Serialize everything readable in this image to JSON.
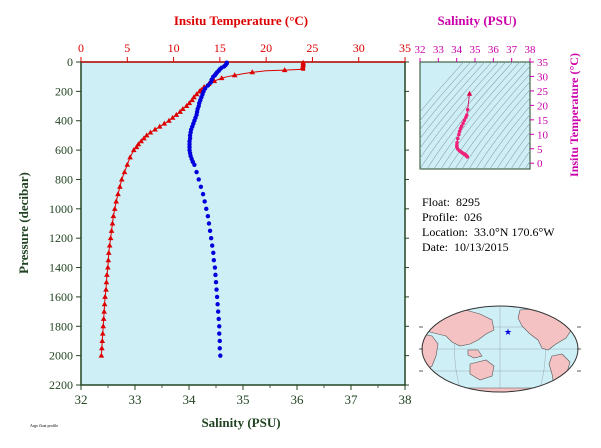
{
  "colors": {
    "temperature": "#dd0000",
    "salinity": "#0000dd",
    "ts_axis": "#cc00aa",
    "axis_dark": "#224422",
    "plot_bg": "#cfeff7",
    "land": "#f4c2c2",
    "ocean": "#cfeff7"
  },
  "footnote": "Argo float profile",
  "info": {
    "float_label": "Float:",
    "float_value": "8295",
    "profile_label": "Profile:",
    "profile_value": "026",
    "location_label": "Location:",
    "location_value": "33.0°N  170.6°W",
    "date_label": "Date:",
    "date_value": "10/13/2015"
  },
  "chart_data": [
    {
      "type": "line",
      "title": "",
      "xlabel_top": "Insitu Temperature (°C)",
      "xlabel_bottom": "Salinity (PSU)",
      "ylabel": "Pressure (decibar)",
      "temp_range": [
        0,
        35
      ],
      "temp_ticks": [
        0,
        5,
        10,
        15,
        20,
        25,
        30,
        35
      ],
      "sal_range": [
        32,
        38
      ],
      "sal_ticks": [
        32,
        33,
        34,
        35,
        36,
        37,
        38
      ],
      "pressure_range": [
        0,
        2200
      ],
      "pressure_ticks": [
        0,
        200,
        400,
        600,
        800,
        1000,
        1200,
        1400,
        1600,
        1800,
        2000,
        2200
      ],
      "grid": false,
      "series": [
        {
          "name": "Insitu Temperature",
          "marker": "triangle",
          "pressure": [
            5,
            10,
            20,
            30,
            40,
            50,
            55,
            60,
            70,
            80,
            90,
            100,
            110,
            120,
            130,
            140,
            150,
            160,
            170,
            180,
            190,
            200,
            220,
            240,
            260,
            280,
            300,
            320,
            340,
            360,
            380,
            400,
            420,
            440,
            460,
            480,
            500,
            520,
            540,
            560,
            580,
            600,
            650,
            700,
            750,
            800,
            850,
            900,
            950,
            1000,
            1050,
            1100,
            1150,
            1200,
            1250,
            1300,
            1350,
            1400,
            1450,
            1500,
            1550,
            1600,
            1650,
            1700,
            1750,
            1800,
            1850,
            1900,
            1950,
            2000
          ],
          "values": [
            24.0,
            24.0,
            24.0,
            24.0,
            23.9,
            23.7,
            22.0,
            20.0,
            18.5,
            17.5,
            16.6,
            15.8,
            15.2,
            14.8,
            14.4,
            14.1,
            13.8,
            13.5,
            13.3,
            13.1,
            13.0,
            12.8,
            12.5,
            12.2,
            12.0,
            11.7,
            11.4,
            11.0,
            10.7,
            10.3,
            9.9,
            9.5,
            9.0,
            8.5,
            8.0,
            7.5,
            7.1,
            6.8,
            6.5,
            6.2,
            6.0,
            5.7,
            5.3,
            5.0,
            4.7,
            4.4,
            4.2,
            4.0,
            3.8,
            3.65,
            3.5,
            3.4,
            3.3,
            3.2,
            3.1,
            3.0,
            2.95,
            2.9,
            2.8,
            2.75,
            2.7,
            2.6,
            2.55,
            2.5,
            2.45,
            2.4,
            2.35,
            2.3,
            2.25,
            2.2
          ]
        },
        {
          "name": "Salinity",
          "marker": "circle",
          "pressure": [
            5,
            10,
            20,
            30,
            40,
            50,
            60,
            70,
            80,
            90,
            100,
            120,
            140,
            160,
            180,
            200,
            220,
            240,
            260,
            280,
            300,
            320,
            340,
            360,
            380,
            400,
            420,
            440,
            460,
            480,
            500,
            520,
            540,
            560,
            580,
            600,
            620,
            640,
            660,
            680,
            700,
            750,
            800,
            850,
            900,
            950,
            1000,
            1050,
            1100,
            1150,
            1200,
            1250,
            1300,
            1350,
            1400,
            1450,
            1500,
            1550,
            1600,
            1650,
            1700,
            1750,
            1800,
            1850,
            1900,
            1950,
            2000
          ],
          "values": [
            34.7,
            34.7,
            34.68,
            34.65,
            34.6,
            34.57,
            34.55,
            34.52,
            34.5,
            34.48,
            34.45,
            34.42,
            34.4,
            34.35,
            34.3,
            34.27,
            34.25,
            34.23,
            34.21,
            34.19,
            34.18,
            34.16,
            34.15,
            34.14,
            34.12,
            34.1,
            34.08,
            34.06,
            34.04,
            34.03,
            34.02,
            34.02,
            34.01,
            34.01,
            34.01,
            34.01,
            34.02,
            34.03,
            34.05,
            34.07,
            34.1,
            34.14,
            34.18,
            34.22,
            34.26,
            34.29,
            34.32,
            34.35,
            34.37,
            34.39,
            34.41,
            34.43,
            34.45,
            34.46,
            34.48,
            34.49,
            34.5,
            34.51,
            34.52,
            34.53,
            34.54,
            34.55,
            34.56,
            34.56,
            34.57,
            34.57,
            34.58
          ]
        }
      ]
    },
    {
      "type": "scatter",
      "title": "",
      "xlabel": "Salinity (PSU)",
      "ylabel": "Insitu Temperature (°C)",
      "xlim": [
        32,
        38
      ],
      "ylim": [
        -2,
        35
      ],
      "x_ticks": [
        32,
        33,
        34,
        35,
        36,
        37,
        38
      ],
      "y_ticks": [
        0,
        5,
        10,
        15,
        20,
        25,
        30,
        35
      ],
      "x": [
        34.7,
        34.6,
        34.55,
        34.5,
        34.42,
        34.35,
        34.27,
        34.21,
        34.16,
        34.12,
        34.06,
        34.02,
        34.01,
        34.01,
        34.05,
        34.14,
        34.22,
        34.29,
        34.35,
        34.41,
        34.46,
        34.5,
        34.53,
        34.56,
        34.58
      ],
      "y": [
        24.0,
        18.5,
        16.6,
        15.8,
        14.8,
        13.8,
        12.8,
        12.0,
        11.0,
        9.9,
        8.5,
        7.1,
        6.2,
        5.7,
        5.0,
        4.4,
        4.0,
        3.65,
        3.4,
        3.2,
        3.0,
        2.8,
        2.6,
        2.4,
        2.2
      ]
    }
  ]
}
